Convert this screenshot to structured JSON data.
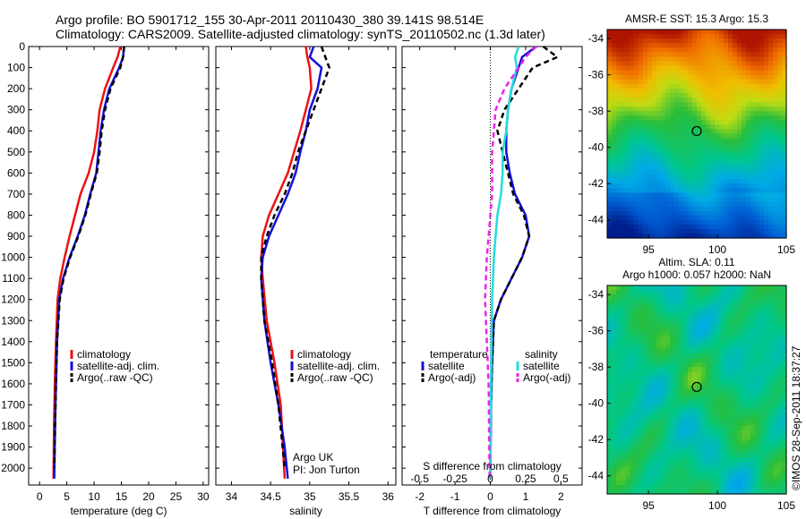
{
  "header": {
    "line1": "Argo profile: BO 5901712_155 30-Apr-2011 20110430_380 39.141S 98.514E",
    "line2": "Climatology: CARS2009. Satellite-adjusted climatology: synTS_20110502.nc (1.3d later)"
  },
  "credit": "©IMOS 28-Sep-2011 18:37:27",
  "chart_data": [
    {
      "type": "line",
      "xlabel": "temperature (deg C)",
      "ylabel": "",
      "xlim": [
        -2,
        31
      ],
      "ylim": [
        2080,
        0
      ],
      "xticks": [
        0,
        5,
        10,
        15,
        20,
        25,
        30
      ],
      "yticks": [
        0,
        100,
        200,
        300,
        400,
        500,
        600,
        700,
        800,
        900,
        1000,
        1100,
        1200,
        1300,
        1400,
        1500,
        1600,
        1700,
        1800,
        1900,
        2000
      ],
      "legend": [
        "climatology",
        "satellite-adj. clim.",
        "Argo(..raw -QC)"
      ],
      "legend_colors": [
        "#ee1111",
        "#1111dd",
        "#000000"
      ],
      "series": [
        {
          "color": "#ee1111",
          "dash": "",
          "x": [
            14.8,
            14.3,
            13.5,
            12.0,
            11.0,
            10.6,
            10.0,
            9.0,
            7.5,
            6.5,
            5.5,
            4.6,
            3.8,
            3.3,
            3.0,
            2.8,
            2.65,
            2.55
          ],
          "y": [
            0,
            50,
            100,
            200,
            300,
            400,
            500,
            600,
            700,
            800,
            900,
            1000,
            1100,
            1200,
            1400,
            1600,
            1800,
            2050
          ]
        },
        {
          "color": "#1111dd",
          "dash": "",
          "x": [
            15.5,
            15.3,
            14.6,
            12.8,
            11.8,
            11.2,
            10.8,
            10.4,
            9.3,
            8.3,
            7.0,
            5.5,
            4.3,
            3.6,
            3.2,
            3.0,
            2.85,
            2.7
          ],
          "y": [
            0,
            50,
            100,
            200,
            300,
            400,
            500,
            600,
            700,
            800,
            900,
            1000,
            1100,
            1200,
            1400,
            1600,
            1800,
            2050
          ]
        },
        {
          "color": "#000000",
          "dash": "6,4",
          "x": [
            15.5,
            15.3,
            14.8,
            13.0,
            12.0,
            11.4,
            11.0,
            10.5,
            9.4,
            8.4,
            7.1,
            5.6,
            4.4,
            3.7,
            3.2,
            3.0,
            2.85,
            2.7
          ],
          "y": [
            0,
            50,
            100,
            200,
            300,
            400,
            500,
            600,
            700,
            800,
            900,
            1000,
            1100,
            1200,
            1400,
            1600,
            1800,
            2000
          ]
        }
      ]
    },
    {
      "type": "line",
      "xlabel": "salinity",
      "ylabel": "",
      "xlim": [
        33.8,
        36.1
      ],
      "ylim": [
        2080,
        0
      ],
      "xticks": [
        34,
        34.5,
        35,
        35.5,
        36
      ],
      "annotation": [
        "Argo UK",
        "PI: Jon Turton"
      ],
      "legend": [
        "climatology",
        "satellite-adj. clim.",
        "Argo(..raw -QC)"
      ],
      "legend_colors": [
        "#ee1111",
        "#1111dd",
        "#000000"
      ],
      "series": [
        {
          "color": "#ee1111",
          "dash": "",
          "x": [
            34.95,
            34.97,
            35.0,
            35.02,
            34.95,
            34.88,
            34.8,
            34.72,
            34.6,
            34.48,
            34.4,
            34.38,
            34.4,
            34.45,
            34.55,
            34.63,
            34.68
          ],
          "y": [
            0,
            50,
            100,
            200,
            300,
            400,
            500,
            600,
            700,
            800,
            900,
            1000,
            1100,
            1300,
            1500,
            1700,
            2050
          ]
        },
        {
          "color": "#1111dd",
          "dash": "",
          "x": [
            35.05,
            35.0,
            35.15,
            35.1,
            35.0,
            34.95,
            34.88,
            34.82,
            34.72,
            34.6,
            34.48,
            34.4,
            34.38,
            34.42,
            34.5,
            34.6,
            34.68,
            34.72
          ],
          "y": [
            0,
            50,
            100,
            200,
            300,
            400,
            500,
            600,
            700,
            800,
            900,
            1000,
            1100,
            1300,
            1500,
            1700,
            1900,
            2050
          ]
        },
        {
          "color": "#000000",
          "dash": "6,4",
          "x": [
            35.15,
            35.2,
            35.25,
            35.15,
            35.05,
            34.95,
            34.85,
            34.78,
            34.68,
            34.55,
            34.45,
            34.38,
            34.38,
            34.42,
            34.52,
            34.6,
            34.68
          ],
          "y": [
            0,
            50,
            100,
            200,
            300,
            400,
            500,
            600,
            700,
            800,
            900,
            1000,
            1100,
            1300,
            1500,
            1700,
            2000
          ]
        }
      ]
    },
    {
      "type": "line",
      "xlabel": "T difference from climatology",
      "ylabel": "",
      "xlim": [
        -2.5,
        2.6
      ],
      "ylim": [
        2080,
        0
      ],
      "xticks": [
        -2,
        -1,
        0,
        1,
        2
      ],
      "top_axis_label": "S difference from climatology",
      "top_ticks": [
        "-0.5",
        "-0.25",
        "0",
        "0.25",
        "0.5"
      ],
      "top_tick_x": [
        -2,
        -1,
        0,
        1,
        2
      ],
      "legend_headers": [
        "temperature",
        "salinity"
      ],
      "legend": [
        "satellite",
        "Argo(-adj)",
        "satellite",
        "Argo(-adj)"
      ],
      "legend_colors": [
        "#1111dd",
        "#000000",
        "#22dddd",
        "#ee22ee"
      ],
      "series": [
        {
          "color": "#1111dd",
          "dash": "",
          "x": [
            1.3,
            0.9,
            0.8,
            0.6,
            0.5,
            0.45,
            0.45,
            0.55,
            0.7,
            1.0,
            1.1,
            0.9,
            0.6,
            0.3,
            0.1,
            0.05,
            0.02,
            0.0
          ],
          "y": [
            0,
            50,
            100,
            200,
            300,
            400,
            500,
            600,
            700,
            800,
            900,
            1000,
            1100,
            1200,
            1300,
            1500,
            1700,
            2050
          ]
        },
        {
          "color": "#000000",
          "dash": "6,4",
          "x": [
            1.5,
            1.9,
            1.2,
            0.8,
            0.4,
            0.2,
            0.35,
            0.5,
            0.65,
            0.95,
            1.1,
            0.9,
            0.6,
            0.3,
            0.1,
            0.05,
            0.02,
            0.0
          ],
          "y": [
            0,
            50,
            100,
            200,
            300,
            400,
            500,
            600,
            700,
            800,
            900,
            1000,
            1100,
            1200,
            1300,
            1500,
            1700,
            2000
          ]
        },
        {
          "color": "#22dddd",
          "dash": "",
          "x": [
            0.8,
            0.7,
            0.75,
            0.6,
            0.5,
            0.45,
            0.35,
            0.35,
            0.3,
            0.2,
            0.15,
            0.1,
            0.05,
            0.02,
            0.0
          ],
          "y": [
            0,
            50,
            100,
            200,
            300,
            400,
            500,
            600,
            700,
            800,
            900,
            1000,
            1200,
            1600,
            2050
          ]
        },
        {
          "color": "#ee22ee",
          "dash": "6,4",
          "x": [
            1.3,
            1.0,
            0.8,
            0.4,
            0.15,
            0.1,
            0.05,
            0.05,
            0.05,
            0.0,
            -0.05,
            -0.1,
            -0.15,
            -0.1,
            -0.05,
            -0.02
          ],
          "y": [
            0,
            50,
            100,
            200,
            300,
            400,
            500,
            600,
            700,
            800,
            900,
            1000,
            1200,
            1400,
            1600,
            2050
          ]
        }
      ]
    },
    {
      "type": "heatmap",
      "title": "AMSR-E SST: 15.3 Argo: 15.3",
      "xlim": [
        92,
        105
      ],
      "ylim": [
        -45,
        -33.5
      ],
      "xticks": [
        95,
        100,
        105
      ],
      "yticks": [
        -34,
        -36,
        -38,
        -40,
        -42,
        -44
      ],
      "marker": {
        "x": 98.5,
        "y": -39.1
      }
    },
    {
      "type": "heatmap",
      "title": [
        "Altim. SLA: 0.11",
        "Argo h1000: 0.057 h2000: NaN"
      ],
      "xlim": [
        92,
        105
      ],
      "ylim": [
        -45,
        -33.5
      ],
      "xticks": [
        95,
        100,
        105
      ],
      "yticks": [
        -34,
        -36,
        -38,
        -40,
        -42,
        -44
      ],
      "marker": {
        "x": 98.5,
        "y": -39.1
      }
    }
  ]
}
